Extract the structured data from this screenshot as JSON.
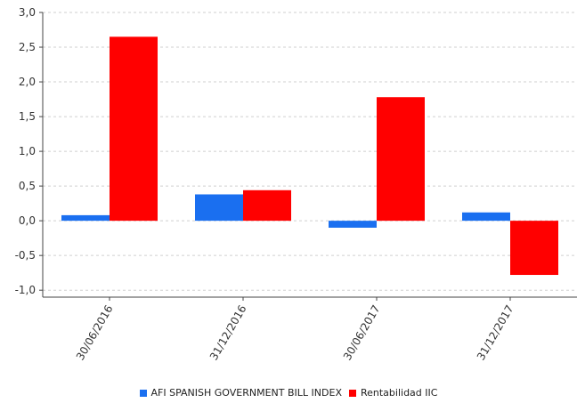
{
  "chart_data": {
    "type": "bar",
    "categories": [
      "30/06/2016",
      "31/12/2016",
      "30/06/2017",
      "31/12/2017"
    ],
    "series": [
      {
        "name": "AFI SPANISH GOVERNMENT BILL INDEX",
        "color": "#1a6ff0",
        "values": [
          0.08,
          0.38,
          -0.1,
          0.12
        ]
      },
      {
        "name": "Rentabilidad IIC",
        "color": "#ff0000",
        "values": [
          2.65,
          0.44,
          1.78,
          -0.78
        ]
      }
    ],
    "yticks": [
      "3,0",
      "2,5",
      "2,0",
      "1,5",
      "1,0",
      "0,5",
      "0,0",
      "-0,5",
      "-1,0"
    ],
    "ytick_values": [
      3.0,
      2.5,
      2.0,
      1.5,
      1.0,
      0.5,
      0.0,
      -0.5,
      -1.0
    ],
    "ylim": [
      -1.1,
      3.0
    ],
    "grid": true,
    "legend_position": "bottom"
  }
}
